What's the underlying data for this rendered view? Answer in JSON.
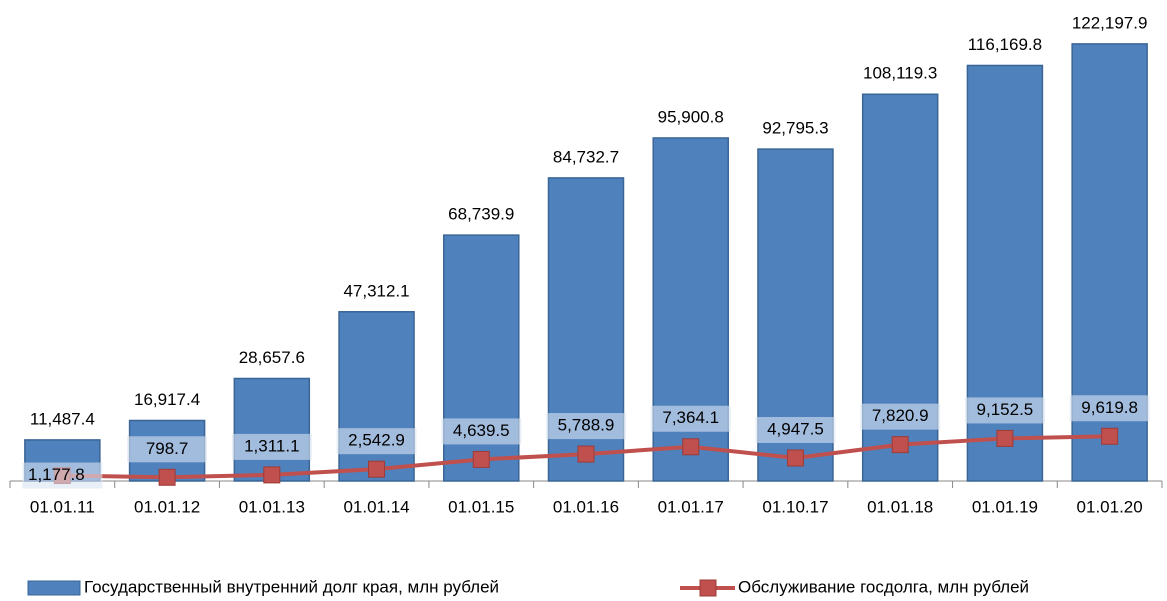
{
  "chart_data": {
    "type": "bar",
    "categories": [
      "01.01.11",
      "01.01.12",
      "01.01.13",
      "01.01.14",
      "01.01.15",
      "01.01.16",
      "01.01.17",
      "01.10.17",
      "01.01.18",
      "01.01.19",
      "01.01.20"
    ],
    "series": [
      {
        "name": "Государственный внутренний долг края, млн рублей",
        "type": "bar",
        "color": "#4f81bd",
        "values": [
          11487.4,
          16917.4,
          28657.6,
          47312.1,
          68739.9,
          84732.7,
          95900.8,
          92795.3,
          108119.3,
          116169.8,
          122197.9
        ],
        "value_labels": [
          "11,487.4",
          "16,917.4",
          "28,657.6",
          "47,312.1",
          "68,739.9",
          "84,732.7",
          "95,900.8",
          "92,795.3",
          "108,119.3",
          "116,169.8",
          "122,197.9"
        ]
      },
      {
        "name": "Обслуживание госдолга, млн рублей",
        "type": "line",
        "axis": "y2",
        "color": "#c0504d",
        "values": [
          1177.8,
          798.7,
          1311.1,
          2542.9,
          4639.5,
          5788.9,
          7364.1,
          4947.5,
          7820.9,
          9152.5,
          9619.8
        ],
        "value_labels": [
          "1,177.8",
          "798.7",
          "1,311.1",
          "2,542.9",
          "4,639.5",
          "5,788.9",
          "7,364.1",
          "4,947.5",
          "7,820.9",
          "9,152.5",
          "9,619.8"
        ]
      }
    ],
    "ylim": [
      0,
      130000
    ],
    "y2lim": [
      0,
      100000
    ],
    "legend": "bottom"
  }
}
